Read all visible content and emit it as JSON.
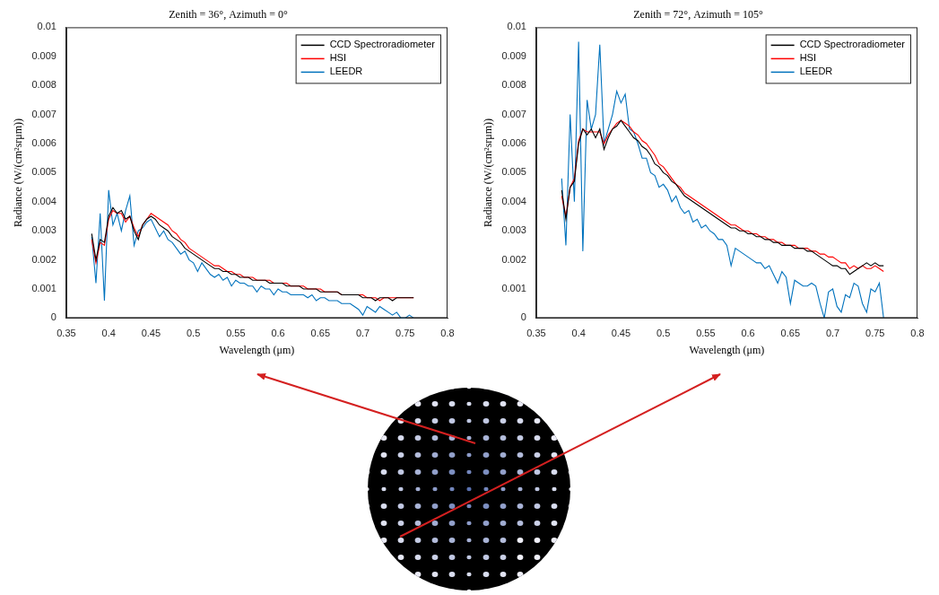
{
  "chart_data": [
    {
      "type": "line",
      "title": "Zenith = 36°, Azimuth = 0°",
      "x_label": "Wavelength (μm)",
      "y_label": "Radiance (W/(cm²srμm))",
      "x": [
        0.38,
        0.385,
        0.39,
        0.395,
        0.4,
        0.405,
        0.41,
        0.415,
        0.42,
        0.425,
        0.43,
        0.435,
        0.44,
        0.445,
        0.45,
        0.455,
        0.46,
        0.465,
        0.47,
        0.475,
        0.48,
        0.485,
        0.49,
        0.495,
        0.5,
        0.505,
        0.51,
        0.515,
        0.52,
        0.525,
        0.53,
        0.535,
        0.54,
        0.545,
        0.55,
        0.555,
        0.56,
        0.565,
        0.57,
        0.575,
        0.58,
        0.585,
        0.59,
        0.595,
        0.6,
        0.605,
        0.61,
        0.615,
        0.62,
        0.625,
        0.63,
        0.635,
        0.64,
        0.645,
        0.65,
        0.655,
        0.66,
        0.665,
        0.67,
        0.675,
        0.68,
        0.685,
        0.69,
        0.695,
        0.7,
        0.705,
        0.71,
        0.715,
        0.72,
        0.725,
        0.73,
        0.735,
        0.74,
        0.745,
        0.75,
        0.755,
        0.76
      ],
      "series": [
        {
          "name": "CCD Spectroradiometer",
          "color": "#000000",
          "values": [
            0.0029,
            0.002,
            0.0027,
            0.0026,
            0.0035,
            0.0038,
            0.0036,
            0.0037,
            0.0034,
            0.0035,
            0.003,
            0.0027,
            0.0032,
            0.0034,
            0.0035,
            0.0034,
            0.0032,
            0.0031,
            0.003,
            0.0028,
            0.0027,
            0.0026,
            0.0024,
            0.0023,
            0.0022,
            0.0021,
            0.002,
            0.0019,
            0.0018,
            0.0017,
            0.0017,
            0.0016,
            0.0016,
            0.0015,
            0.0015,
            0.0014,
            0.0014,
            0.0014,
            0.0013,
            0.0013,
            0.0013,
            0.0013,
            0.0012,
            0.0012,
            0.0012,
            0.0012,
            0.0011,
            0.0011,
            0.0011,
            0.0011,
            0.001,
            0.001,
            0.001,
            0.001,
            0.0009,
            0.0009,
            0.0009,
            0.0009,
            0.0009,
            0.0008,
            0.0008,
            0.0008,
            0.0008,
            0.0008,
            0.0007,
            0.0007,
            0.0007,
            0.0006,
            0.0007,
            0.0007,
            0.0007,
            0.0006,
            0.0007,
            0.0007,
            0.0007,
            0.0007,
            0.0007
          ]
        },
        {
          "name": "HSI",
          "color": "#ff0000",
          "values": [
            0.0027,
            0.0019,
            0.0026,
            0.0025,
            0.0034,
            0.0037,
            0.0036,
            0.0036,
            0.0033,
            0.0035,
            0.0031,
            0.0028,
            0.0032,
            0.0034,
            0.0036,
            0.0035,
            0.0034,
            0.0033,
            0.0032,
            0.003,
            0.0029,
            0.0027,
            0.0026,
            0.0024,
            0.0023,
            0.0022,
            0.0021,
            0.002,
            0.0019,
            0.0018,
            0.0018,
            0.0017,
            0.0016,
            0.0016,
            0.0015,
            0.0015,
            0.0014,
            0.0014,
            0.0014,
            0.0013,
            0.0013,
            0.0013,
            0.0013,
            0.0012,
            0.0012,
            0.0012,
            0.0012,
            0.0011,
            0.0011,
            0.0011,
            0.0011,
            0.001,
            0.001,
            0.001,
            0.001,
            0.0009,
            0.0009,
            0.0009,
            0.0009,
            0.0008,
            0.0008,
            0.0008,
            0.0008,
            0.0008,
            0.0008,
            0.0007,
            0.0007,
            0.0007,
            0.0006,
            0.0007,
            0.0007,
            0.0007,
            0.0007,
            0.0007,
            0.0007,
            0.0007,
            0.0007
          ]
        },
        {
          "name": "LEEDR",
          "color": "#0072bd",
          "values": [
            0.0028,
            0.0012,
            0.0036,
            0.0006,
            0.0044,
            0.0032,
            0.0036,
            0.003,
            0.0037,
            0.0042,
            0.0025,
            0.003,
            0.0031,
            0.0033,
            0.0034,
            0.0031,
            0.0028,
            0.003,
            0.0027,
            0.0026,
            0.0024,
            0.0022,
            0.0023,
            0.002,
            0.0019,
            0.0016,
            0.0019,
            0.0017,
            0.0015,
            0.0014,
            0.0015,
            0.0013,
            0.0014,
            0.0011,
            0.0013,
            0.0012,
            0.0012,
            0.0011,
            0.0011,
            0.0009,
            0.0011,
            0.001,
            0.001,
            0.0008,
            0.001,
            0.0009,
            0.0009,
            0.0008,
            0.0008,
            0.0008,
            0.0008,
            0.0007,
            0.0008,
            0.0006,
            0.0007,
            0.0007,
            0.0006,
            0.0006,
            0.0006,
            0.0005,
            0.0005,
            0.0005,
            0.0004,
            0.0003,
            0.0001,
            0.0004,
            0.0003,
            0.0002,
            0.0004,
            0.0003,
            0.0002,
            0.0001,
            0.0002,
            0.0,
            0.0,
            0.0001,
            0.0
          ]
        }
      ],
      "xlim": [
        0.35,
        0.8
      ],
      "xticks": [
        0.35,
        0.4,
        0.45,
        0.5,
        0.55,
        0.6,
        0.65,
        0.7,
        0.75,
        0.8
      ],
      "ylim": [
        0,
        0.01
      ],
      "yticks": [
        0,
        0.001,
        0.002,
        0.003,
        0.004,
        0.005,
        0.006,
        0.007,
        0.008,
        0.009,
        0.01
      ],
      "grid": false,
      "legend": "upper right"
    },
    {
      "type": "line",
      "title": "Zenith = 72°, Azimuth = 105°",
      "x_label": "Wavelength (μm)",
      "y_label": "Radiance (W/(cm²srμm))",
      "x": [
        0.38,
        0.385,
        0.39,
        0.395,
        0.4,
        0.405,
        0.41,
        0.415,
        0.42,
        0.425,
        0.43,
        0.435,
        0.44,
        0.445,
        0.45,
        0.455,
        0.46,
        0.465,
        0.47,
        0.475,
        0.48,
        0.485,
        0.49,
        0.495,
        0.5,
        0.505,
        0.51,
        0.515,
        0.52,
        0.525,
        0.53,
        0.535,
        0.54,
        0.545,
        0.55,
        0.555,
        0.56,
        0.565,
        0.57,
        0.575,
        0.58,
        0.585,
        0.59,
        0.595,
        0.6,
        0.605,
        0.61,
        0.615,
        0.62,
        0.625,
        0.63,
        0.635,
        0.64,
        0.645,
        0.65,
        0.655,
        0.66,
        0.665,
        0.67,
        0.675,
        0.68,
        0.685,
        0.69,
        0.695,
        0.7,
        0.705,
        0.71,
        0.715,
        0.72,
        0.725,
        0.73,
        0.735,
        0.74,
        0.745,
        0.75,
        0.755,
        0.76
      ],
      "series": [
        {
          "name": "CCD Spectroradiometer",
          "color": "#000000",
          "values": [
            0.0044,
            0.0034,
            0.0045,
            0.0047,
            0.006,
            0.0065,
            0.0063,
            0.0065,
            0.0062,
            0.0065,
            0.0058,
            0.0062,
            0.0065,
            0.0066,
            0.0068,
            0.0066,
            0.0064,
            0.0062,
            0.0061,
            0.0059,
            0.0058,
            0.0056,
            0.0053,
            0.0052,
            0.005,
            0.0049,
            0.0047,
            0.0046,
            0.0044,
            0.0042,
            0.0041,
            0.004,
            0.0039,
            0.0038,
            0.0037,
            0.0036,
            0.0035,
            0.0034,
            0.0033,
            0.0032,
            0.0031,
            0.0031,
            0.003,
            0.003,
            0.0029,
            0.0029,
            0.0028,
            0.0028,
            0.0027,
            0.0027,
            0.0026,
            0.0026,
            0.0025,
            0.0025,
            0.0025,
            0.0024,
            0.0024,
            0.0024,
            0.0023,
            0.0023,
            0.0022,
            0.0021,
            0.002,
            0.0019,
            0.0018,
            0.0018,
            0.0017,
            0.0017,
            0.0015,
            0.0016,
            0.0017,
            0.0018,
            0.0019,
            0.0018,
            0.0019,
            0.0018,
            0.0018
          ]
        },
        {
          "name": "HSI",
          "color": "#ff0000",
          "values": [
            0.0042,
            0.0035,
            0.0045,
            0.0048,
            0.0061,
            0.0065,
            0.0064,
            0.0064,
            0.0064,
            0.0064,
            0.006,
            0.0063,
            0.0065,
            0.0067,
            0.0068,
            0.0067,
            0.0066,
            0.0064,
            0.0063,
            0.0061,
            0.006,
            0.0058,
            0.0056,
            0.0053,
            0.0052,
            0.005,
            0.0048,
            0.0046,
            0.0045,
            0.0043,
            0.0042,
            0.0041,
            0.004,
            0.0039,
            0.0038,
            0.0037,
            0.0036,
            0.0035,
            0.0034,
            0.0033,
            0.0032,
            0.0032,
            0.0031,
            0.003,
            0.003,
            0.0029,
            0.0029,
            0.0028,
            0.0028,
            0.0027,
            0.0027,
            0.0026,
            0.0026,
            0.0025,
            0.0025,
            0.0025,
            0.0024,
            0.0024,
            0.0024,
            0.0023,
            0.0023,
            0.0022,
            0.0022,
            0.0021,
            0.0021,
            0.002,
            0.0019,
            0.0019,
            0.0017,
            0.0018,
            0.0017,
            0.0018,
            0.0017,
            0.0017,
            0.0018,
            0.0017,
            0.0016
          ]
        },
        {
          "name": "LEEDR",
          "color": "#0072bd",
          "values": [
            0.0048,
            0.0025,
            0.007,
            0.004,
            0.0095,
            0.0023,
            0.0075,
            0.0065,
            0.007,
            0.0094,
            0.006,
            0.0065,
            0.007,
            0.0078,
            0.0074,
            0.0077,
            0.0065,
            0.0064,
            0.006,
            0.0055,
            0.0055,
            0.005,
            0.0049,
            0.0045,
            0.0046,
            0.0044,
            0.004,
            0.0042,
            0.0038,
            0.0036,
            0.0037,
            0.0033,
            0.0034,
            0.0031,
            0.0032,
            0.003,
            0.0029,
            0.0027,
            0.0027,
            0.0025,
            0.0018,
            0.0024,
            0.0023,
            0.0022,
            0.0021,
            0.002,
            0.0019,
            0.0019,
            0.0017,
            0.0018,
            0.0015,
            0.0012,
            0.0016,
            0.0014,
            0.0005,
            0.0013,
            0.0012,
            0.0011,
            0.0011,
            0.0012,
            0.0011,
            0.0005,
            0.0,
            0.0009,
            0.001,
            0.0004,
            0.0002,
            0.0008,
            0.0007,
            0.0012,
            0.0011,
            0.0005,
            0.0002,
            0.001,
            0.0009,
            0.0012,
            0.0
          ]
        }
      ],
      "xlim": [
        0.35,
        0.8
      ],
      "xticks": [
        0.35,
        0.4,
        0.45,
        0.5,
        0.55,
        0.6,
        0.65,
        0.7,
        0.75,
        0.8
      ],
      "ylim": [
        0,
        0.01
      ],
      "yticks": [
        0,
        0.001,
        0.002,
        0.003,
        0.004,
        0.005,
        0.006,
        0.007,
        0.008,
        0.009,
        0.01
      ],
      "grid": false,
      "legend": "upper right"
    }
  ]
}
